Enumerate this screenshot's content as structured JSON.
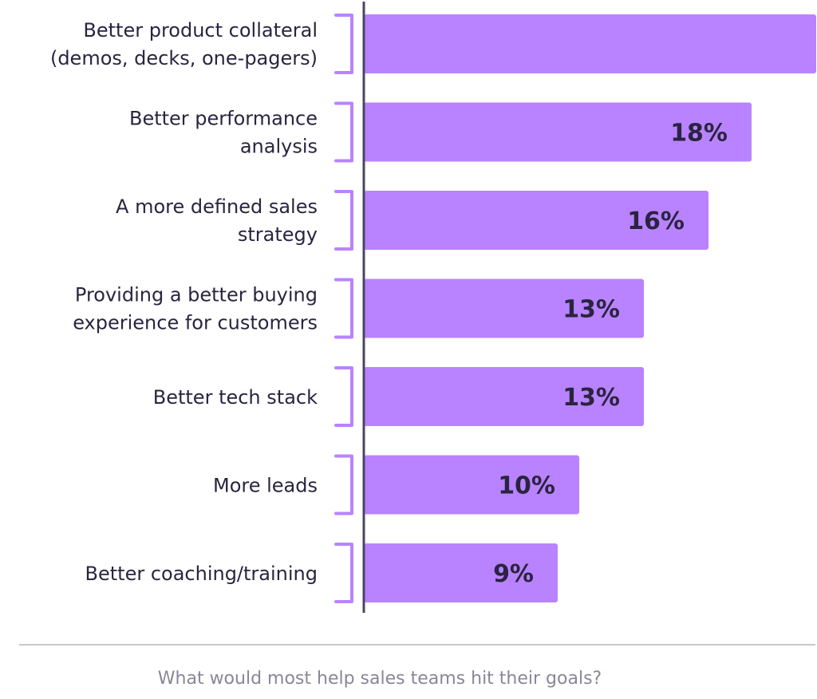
{
  "chart_data": {
    "type": "bar",
    "orientation": "horizontal",
    "categories": [
      [
        "Better product collateral",
        "(demos, decks, one-pagers)"
      ],
      [
        "Better performance",
        "analysis"
      ],
      [
        "A more defined sales",
        "strategy"
      ],
      [
        "Providing a better buying",
        "experience for customers"
      ],
      [
        "Better tech stack"
      ],
      [
        "More leads"
      ],
      [
        "Better coaching/training"
      ]
    ],
    "values": [
      21,
      18,
      16,
      13,
      13,
      10,
      9
    ],
    "value_labels": [
      "",
      "18%",
      "16%",
      "13%",
      "13%",
      "10%",
      "9%"
    ],
    "xlim": [
      0,
      21
    ],
    "bar_color": "#b983ff",
    "bracket_color": "#b983ff",
    "axis_color": "#4a4460",
    "text_color": "#2a2440",
    "grid": false
  },
  "caption": "What would most help sales teams hit their goals?"
}
